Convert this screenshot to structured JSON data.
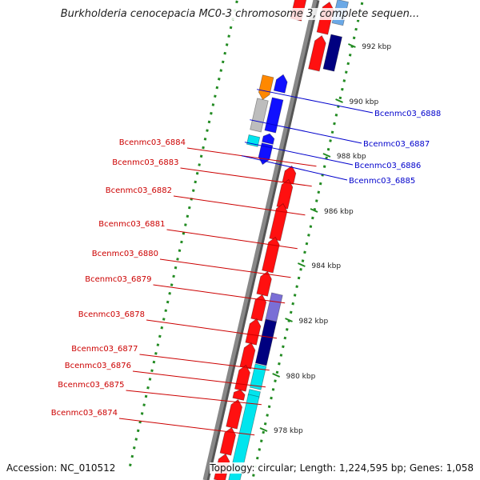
{
  "title": "Burkholderia cenocepacia MC0-3 chromosome 3, complete sequen...",
  "accession_label": "Accession: NC_010512",
  "topology_label": "Topology: circular; Length: 1,224,595 bp; Genes: 1,058",
  "colors": {
    "forward_gene": "#ff1010",
    "reverse_gene": "#1010ff",
    "cyan_gene": "#00e5ee",
    "navy_gene": "#000080",
    "slate_gene": "#7a6fd6",
    "light_blue_gene": "#6aa8e6",
    "gray_gene": "#bdbdbd",
    "orange_gene": "#ff8800",
    "backbone": "#888888",
    "tick_major": "#228b22",
    "left_label": "#cc0000",
    "right_label": "#0000cc"
  },
  "scale_ticks": [
    {
      "label": "992 kbp"
    },
    {
      "label": "990 kbp"
    },
    {
      "label": "988 kbp"
    },
    {
      "label": "986 kbp"
    },
    {
      "label": "984 kbp"
    },
    {
      "label": "982 kbp"
    },
    {
      "label": "980 kbp"
    },
    {
      "label": "978 kbp"
    }
  ],
  "left_genes": [
    {
      "label": "Bcenmc03_6884"
    },
    {
      "label": "Bcenmc03_6883"
    },
    {
      "label": "Bcenmc03_6882"
    },
    {
      "label": "Bcenmc03_6881"
    },
    {
      "label": "Bcenmc03_6880"
    },
    {
      "label": "Bcenmc03_6879"
    },
    {
      "label": "Bcenmc03_6878"
    },
    {
      "label": "Bcenmc03_6877"
    },
    {
      "label": "Bcenmc03_6876"
    },
    {
      "label": "Bcenmc03_6875"
    },
    {
      "label": "Bcenmc03_6874"
    }
  ],
  "right_genes": [
    {
      "label": "Bcenmc03_6888"
    },
    {
      "label": "Bcenmc03_6887"
    },
    {
      "label": "Bcenmc03_6886"
    },
    {
      "label": "Bcenmc03_6885"
    }
  ]
}
